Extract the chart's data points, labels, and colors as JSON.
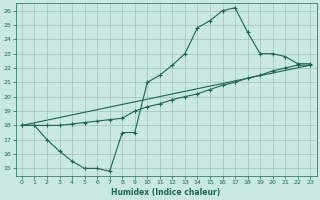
{
  "xlabel": "Humidex (Indice chaleur)",
  "background_color": "#c8e8e0",
  "grid_color": "#a0c0b8",
  "line_color": "#1a6655",
  "xlim": [
    -0.5,
    23.5
  ],
  "ylim": [
    14.5,
    26.5
  ],
  "xticks": [
    0,
    1,
    2,
    3,
    4,
    5,
    6,
    7,
    8,
    9,
    10,
    11,
    12,
    13,
    14,
    15,
    16,
    17,
    18,
    19,
    20,
    21,
    22,
    23
  ],
  "yticks": [
    15,
    16,
    17,
    18,
    19,
    20,
    21,
    22,
    23,
    24,
    25,
    26
  ],
  "line1_x": [
    0,
    1,
    2,
    3,
    4,
    5,
    6,
    7,
    8,
    9,
    10,
    11,
    12,
    13,
    14,
    15,
    16,
    17,
    18,
    19,
    20,
    21,
    22,
    23
  ],
  "line1_y": [
    18,
    18,
    17,
    16.2,
    15.5,
    15,
    15,
    14.8,
    17.5,
    17.5,
    21,
    21.5,
    22.2,
    23,
    24.8,
    25.3,
    26,
    26.2,
    24.5,
    23,
    23,
    22.8,
    22.3,
    22.3
  ],
  "line2_x": [
    0,
    1,
    2,
    3,
    4,
    5,
    6,
    7,
    8,
    9,
    10,
    11,
    12,
    13,
    14,
    15,
    16,
    17,
    18,
    19,
    20,
    21,
    22,
    23
  ],
  "line2_y": [
    18,
    18,
    18,
    18,
    18.1,
    18.2,
    18.3,
    18.4,
    18.5,
    19,
    19.3,
    19.5,
    19.8,
    20,
    20.2,
    20.5,
    20.8,
    21,
    21.3,
    21.5,
    21.8,
    22,
    22.2,
    22.2
  ],
  "line3_x": [
    0,
    23
  ],
  "line3_y": [
    18,
    22.2
  ]
}
